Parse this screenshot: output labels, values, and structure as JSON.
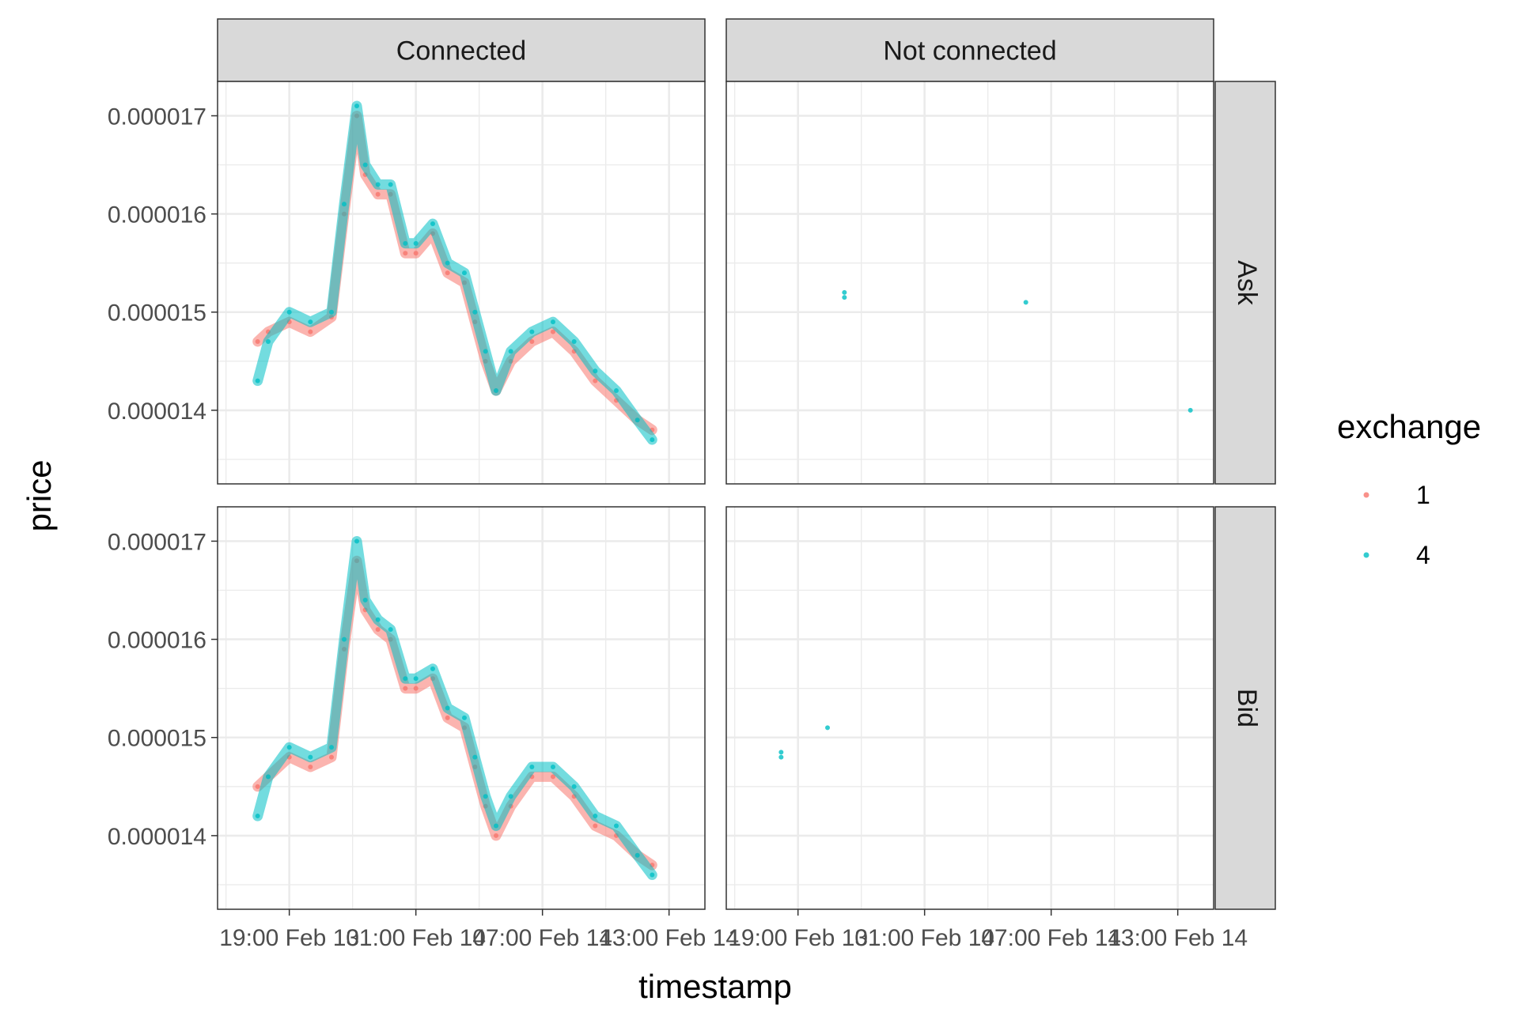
{
  "chart_data": {
    "type": "scatter",
    "xlabel": "timestamp",
    "ylabel": "price",
    "facets": {
      "columns": [
        "Connected",
        "Not connected"
      ],
      "rows": [
        "Ask",
        "Bid"
      ]
    },
    "x_ticks": [
      "19:00 Feb 13",
      "01:00 Feb 14",
      "07:00 Feb 14",
      "13:00 Feb 14"
    ],
    "y_ticks": [
      "0.000014",
      "0.000015",
      "0.000016",
      "0.000017"
    ],
    "ylim": [
      1.325e-05,
      1.735e-05
    ],
    "xlim_hours": [
      -3.4,
      19.7
    ],
    "x_unit": "hours relative to 19:00 Feb 13",
    "grid": true,
    "legend": {
      "title": "exchange",
      "position": "right",
      "entries": [
        {
          "label": "1",
          "color": "#F8766D"
        },
        {
          "label": "4",
          "color": "#00BFC4"
        }
      ]
    },
    "series": [
      {
        "name": "1",
        "color": "#F8766D",
        "panels": {
          "Connected|Ask": [
            [
              -1.5,
              1.47e-05
            ],
            [
              -1,
              1.48e-05
            ],
            [
              0,
              1.49e-05
            ],
            [
              1,
              1.48e-05
            ],
            [
              2,
              1.495e-05
            ],
            [
              2.6,
              1.6e-05
            ],
            [
              3.2,
              1.7e-05
            ],
            [
              3.6,
              1.64e-05
            ],
            [
              4.2,
              1.62e-05
            ],
            [
              4.8,
              1.62e-05
            ],
            [
              5.5,
              1.56e-05
            ],
            [
              6,
              1.56e-05
            ],
            [
              6.8,
              1.58e-05
            ],
            [
              7.5,
              1.54e-05
            ],
            [
              8.3,
              1.53e-05
            ],
            [
              8.8,
              1.49e-05
            ],
            [
              9.3,
              1.45e-05
            ],
            [
              9.8,
              1.42e-05
            ],
            [
              10.5,
              1.45e-05
            ],
            [
              11.5,
              1.47e-05
            ],
            [
              12.5,
              1.48e-05
            ],
            [
              13.5,
              1.46e-05
            ],
            [
              14.5,
              1.43e-05
            ],
            [
              15.5,
              1.41e-05
            ],
            [
              16.5,
              1.39e-05
            ],
            [
              17.2,
              1.38e-05
            ]
          ],
          "Connected|Bid": [
            [
              -1.5,
              1.45e-05
            ],
            [
              -1,
              1.46e-05
            ],
            [
              0,
              1.48e-05
            ],
            [
              1,
              1.47e-05
            ],
            [
              2,
              1.48e-05
            ],
            [
              2.6,
              1.59e-05
            ],
            [
              3.2,
              1.68e-05
            ],
            [
              3.6,
              1.63e-05
            ],
            [
              4.2,
              1.61e-05
            ],
            [
              4.8,
              1.6e-05
            ],
            [
              5.5,
              1.55e-05
            ],
            [
              6,
              1.55e-05
            ],
            [
              6.8,
              1.56e-05
            ],
            [
              7.5,
              1.52e-05
            ],
            [
              8.3,
              1.51e-05
            ],
            [
              8.8,
              1.47e-05
            ],
            [
              9.3,
              1.43e-05
            ],
            [
              9.8,
              1.4e-05
            ],
            [
              10.5,
              1.43e-05
            ],
            [
              11.5,
              1.46e-05
            ],
            [
              12.5,
              1.46e-05
            ],
            [
              13.5,
              1.44e-05
            ],
            [
              14.5,
              1.41e-05
            ],
            [
              15.5,
              1.4e-05
            ],
            [
              16.5,
              1.38e-05
            ],
            [
              17.2,
              1.37e-05
            ]
          ],
          "Not connected|Ask": [],
          "Not connected|Bid": []
        }
      },
      {
        "name": "4",
        "color": "#00BFC4",
        "panels": {
          "Connected|Ask": [
            [
              -1.5,
              1.43e-05
            ],
            [
              -1,
              1.47e-05
            ],
            [
              0,
              1.5e-05
            ],
            [
              1,
              1.49e-05
            ],
            [
              2,
              1.5e-05
            ],
            [
              2.6,
              1.61e-05
            ],
            [
              3.2,
              1.71e-05
            ],
            [
              3.6,
              1.65e-05
            ],
            [
              4.2,
              1.63e-05
            ],
            [
              4.8,
              1.63e-05
            ],
            [
              5.5,
              1.57e-05
            ],
            [
              6,
              1.57e-05
            ],
            [
              6.8,
              1.59e-05
            ],
            [
              7.5,
              1.55e-05
            ],
            [
              8.3,
              1.54e-05
            ],
            [
              8.8,
              1.5e-05
            ],
            [
              9.3,
              1.46e-05
            ],
            [
              9.8,
              1.42e-05
            ],
            [
              10.5,
              1.46e-05
            ],
            [
              11.5,
              1.48e-05
            ],
            [
              12.5,
              1.49e-05
            ],
            [
              13.5,
              1.47e-05
            ],
            [
              14.5,
              1.44e-05
            ],
            [
              15.5,
              1.42e-05
            ],
            [
              16.5,
              1.39e-05
            ],
            [
              17.2,
              1.37e-05
            ]
          ],
          "Connected|Bid": [
            [
              -1.5,
              1.42e-05
            ],
            [
              -1,
              1.46e-05
            ],
            [
              0,
              1.49e-05
            ],
            [
              1,
              1.48e-05
            ],
            [
              2,
              1.49e-05
            ],
            [
              2.6,
              1.6e-05
            ],
            [
              3.2,
              1.7e-05
            ],
            [
              3.6,
              1.64e-05
            ],
            [
              4.2,
              1.62e-05
            ],
            [
              4.8,
              1.61e-05
            ],
            [
              5.5,
              1.56e-05
            ],
            [
              6,
              1.56e-05
            ],
            [
              6.8,
              1.57e-05
            ],
            [
              7.5,
              1.53e-05
            ],
            [
              8.3,
              1.52e-05
            ],
            [
              8.8,
              1.48e-05
            ],
            [
              9.3,
              1.44e-05
            ],
            [
              9.8,
              1.41e-05
            ],
            [
              10.5,
              1.44e-05
            ],
            [
              11.5,
              1.47e-05
            ],
            [
              12.5,
              1.47e-05
            ],
            [
              13.5,
              1.45e-05
            ],
            [
              14.5,
              1.42e-05
            ],
            [
              15.5,
              1.41e-05
            ],
            [
              16.5,
              1.38e-05
            ],
            [
              17.2,
              1.36e-05
            ]
          ],
          "Not connected|Ask": [
            [
              2.2,
              1.52e-05
            ],
            [
              2.2,
              1.515e-05
            ],
            [
              10.8,
              1.51e-05
            ],
            [
              18.6,
              1.4e-05
            ]
          ],
          "Not connected|Bid": [
            [
              -0.8,
              1.485e-05
            ],
            [
              -0.8,
              1.48e-05
            ],
            [
              1.4,
              1.51e-05
            ]
          ]
        }
      }
    ]
  }
}
